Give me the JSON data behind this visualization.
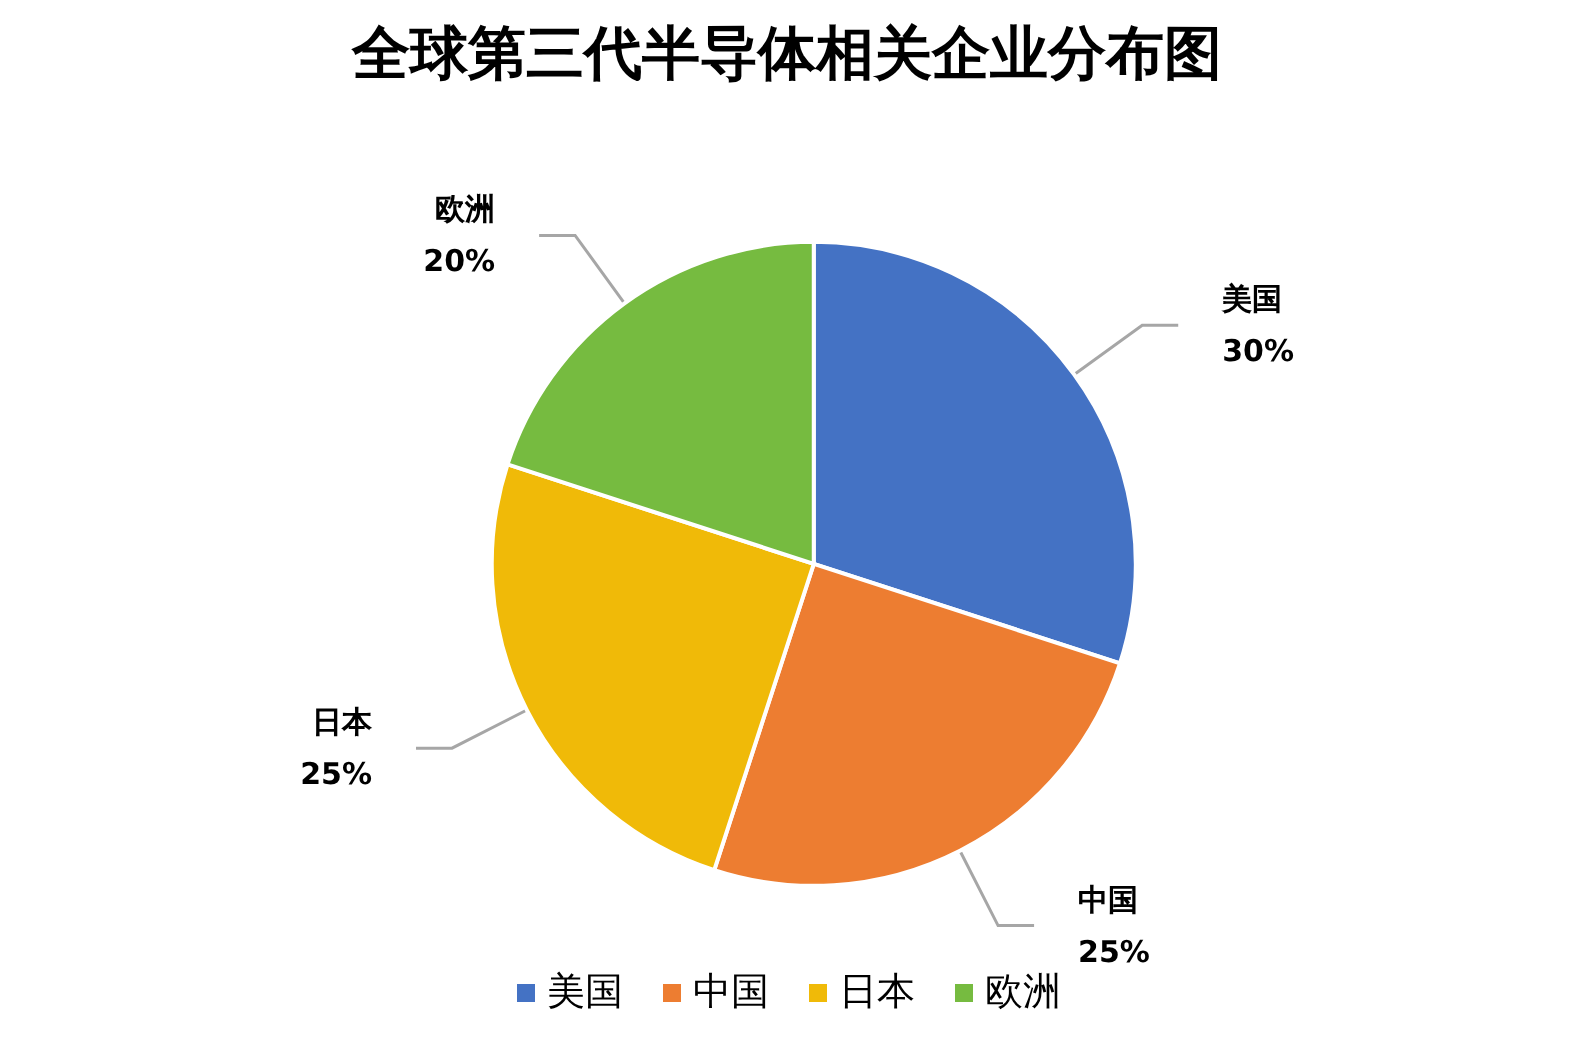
{
  "chart_data": {
    "type": "pie",
    "title": "全球第三代半导体相关企业分布图",
    "categories": [
      "美国",
      "中国",
      "日本",
      "欧洲"
    ],
    "values": [
      30,
      25,
      25,
      20
    ],
    "value_labels": [
      "30%",
      "25%",
      "25%",
      "20%"
    ],
    "colors": [
      "#4472c4",
      "#ed7d31",
      "#f0ba08",
      "#76bb40"
    ],
    "legend": "bottom"
  }
}
